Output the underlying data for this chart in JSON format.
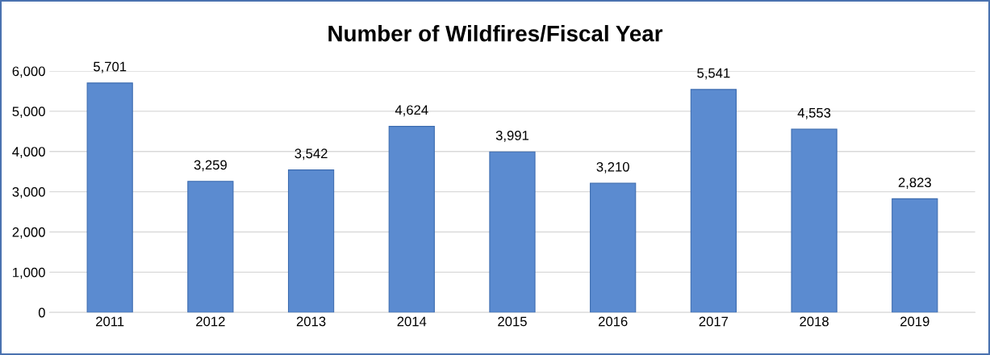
{
  "chart_data": {
    "type": "bar",
    "title": "Number of Wildfires/Fiscal Year",
    "categories": [
      "2011",
      "2012",
      "2013",
      "2014",
      "2015",
      "2016",
      "2017",
      "2018",
      "2019"
    ],
    "values": [
      5701,
      3259,
      3542,
      4624,
      3991,
      3210,
      5541,
      4553,
      2823
    ],
    "color": "#5b8bd0",
    "ylim": [
      0,
      6000
    ],
    "yticks": [
      {
        "value": 0,
        "label": "0"
      },
      {
        "value": 1000,
        "label": "1,000"
      },
      {
        "value": 2000,
        "label": "2,000"
      },
      {
        "value": 3000,
        "label": "3,000"
      },
      {
        "value": 4000,
        "label": "4,000"
      },
      {
        "value": 5000,
        "label": "5,000"
      },
      {
        "value": 6000,
        "label": "6,000"
      }
    ],
    "value_labels": [
      "5,701",
      "3,259",
      "3,542",
      "4,624",
      "3,991",
      "3,210",
      "5,541",
      "4,553",
      "2,823"
    ],
    "grid": "y",
    "legend": false
  }
}
